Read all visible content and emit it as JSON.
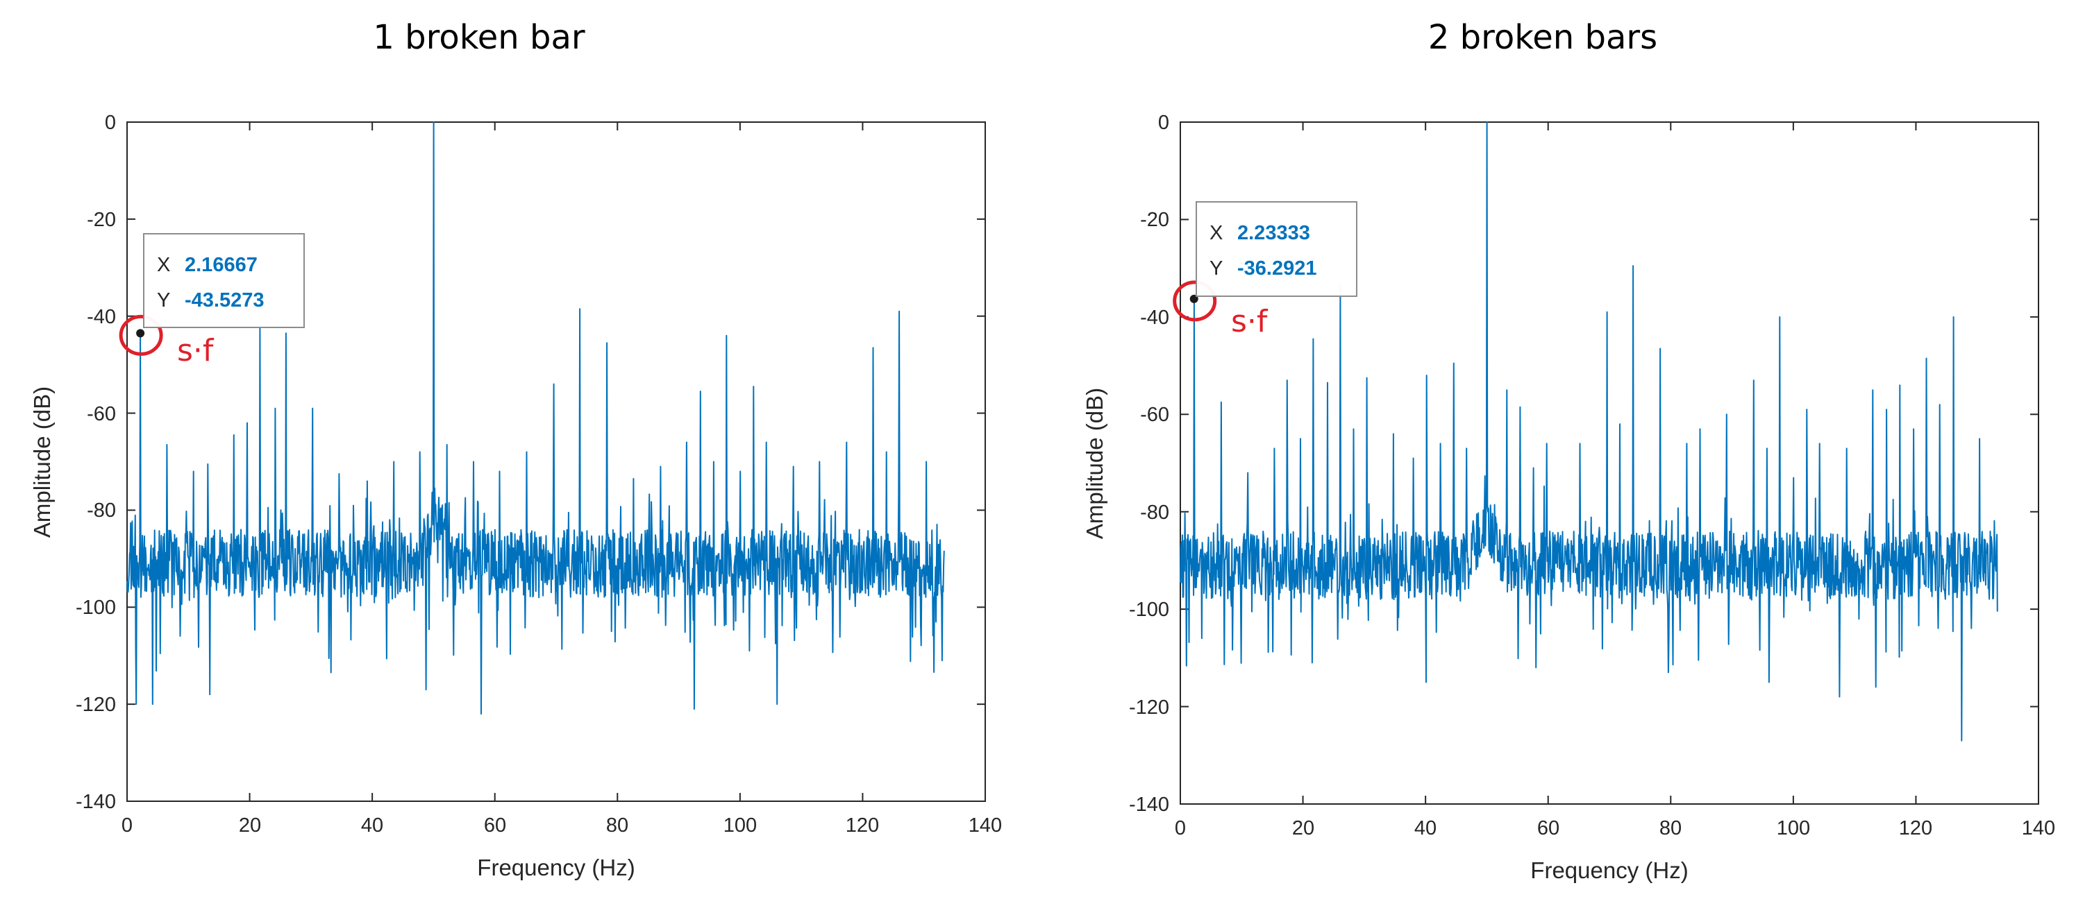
{
  "colors": {
    "series": "#0072bd",
    "marker_ring": "#e0202a",
    "axis": "#262626",
    "tip_value": "#0072bd"
  },
  "chart_data": [
    {
      "type": "line",
      "title": "1 broken bar",
      "xlabel": "Frequency (Hz)",
      "ylabel": "Amplitude (dB)",
      "xlim": [
        0,
        140
      ],
      "ylim": [
        -140,
        0
      ],
      "xticks": [
        "0",
        "20",
        "40",
        "60",
        "80",
        "100",
        "120",
        "140"
      ],
      "yticks": [
        "0",
        "-20",
        "-40",
        "-60",
        "-80",
        "-100",
        "-120",
        "-140"
      ],
      "x_data_range": [
        0,
        133.3
      ],
      "noise_floor": -91,
      "noise_spread": 7,
      "peaks": [
        {
          "x": 2.17,
          "y": -43.5
        },
        {
          "x": 6.5,
          "y": -66.5
        },
        {
          "x": 10.8,
          "y": -72
        },
        {
          "x": 13.2,
          "y": -70.5
        },
        {
          "x": 17.4,
          "y": -64.5
        },
        {
          "x": 19.6,
          "y": -62
        },
        {
          "x": 21.7,
          "y": -42.5
        },
        {
          "x": 24.2,
          "y": -59
        },
        {
          "x": 25.9,
          "y": -43.5
        },
        {
          "x": 30.3,
          "y": -59
        },
        {
          "x": 34.6,
          "y": -72.5
        },
        {
          "x": 39.2,
          "y": -74
        },
        {
          "x": 43.5,
          "y": -70
        },
        {
          "x": 47.8,
          "y": -68
        },
        {
          "x": 50,
          "y": 0
        },
        {
          "x": 52.2,
          "y": -66.5
        },
        {
          "x": 56.5,
          "y": -70
        },
        {
          "x": 60.8,
          "y": -72
        },
        {
          "x": 65.2,
          "y": -68
        },
        {
          "x": 69.6,
          "y": -54
        },
        {
          "x": 73.9,
          "y": -38.5
        },
        {
          "x": 78.3,
          "y": -45.5
        },
        {
          "x": 82.6,
          "y": -73.5
        },
        {
          "x": 87,
          "y": -71
        },
        {
          "x": 91.3,
          "y": -66
        },
        {
          "x": 93.5,
          "y": -55.5
        },
        {
          "x": 95.7,
          "y": -70
        },
        {
          "x": 97.8,
          "y": -44
        },
        {
          "x": 100,
          "y": -72
        },
        {
          "x": 102.2,
          "y": -54.5
        },
        {
          "x": 104.3,
          "y": -66
        },
        {
          "x": 108.7,
          "y": -71
        },
        {
          "x": 113,
          "y": -70
        },
        {
          "x": 117.4,
          "y": -66
        },
        {
          "x": 121.7,
          "y": -46.5
        },
        {
          "x": 123.9,
          "y": -68
        },
        {
          "x": 126,
          "y": -39
        },
        {
          "x": 130.4,
          "y": -70
        }
      ],
      "dips": [
        {
          "x": 1.5,
          "y": -120
        },
        {
          "x": 4.2,
          "y": -120
        },
        {
          "x": 13.5,
          "y": -118
        },
        {
          "x": 48.8,
          "y": -117
        },
        {
          "x": 57.8,
          "y": -122
        },
        {
          "x": 92.5,
          "y": -121
        },
        {
          "x": 106,
          "y": -120
        },
        {
          "x": 133,
          "y": -111
        }
      ],
      "seed": 11,
      "datatip": {
        "x_key": "X",
        "x_value": "2.16667",
        "y_key": "Y",
        "y_value": "-43.5273",
        "point_x": 2.16667,
        "point_y": -43.5273
      },
      "annotation": "s·f"
    },
    {
      "type": "line",
      "title": "2 broken bars",
      "xlabel": "Frequency (Hz)",
      "ylabel": "Amplitude (dB)",
      "xlim": [
        0,
        140
      ],
      "ylim": [
        -140,
        0
      ],
      "xticks": [
        "0",
        "20",
        "40",
        "60",
        "80",
        "100",
        "120",
        "140"
      ],
      "yticks": [
        "0",
        "-20",
        "-40",
        "-60",
        "-80",
        "-100",
        "-120",
        "-140"
      ],
      "x_data_range": [
        0,
        133.3
      ],
      "noise_floor": -91,
      "noise_spread": 7,
      "peaks": [
        {
          "x": 2.23,
          "y": -36.3
        },
        {
          "x": 6.7,
          "y": -57.5
        },
        {
          "x": 11,
          "y": -72
        },
        {
          "x": 15.3,
          "y": -67
        },
        {
          "x": 17.4,
          "y": -53
        },
        {
          "x": 19.6,
          "y": -65
        },
        {
          "x": 21.7,
          "y": -44.5
        },
        {
          "x": 24,
          "y": -53.5
        },
        {
          "x": 26.1,
          "y": -33.5
        },
        {
          "x": 28.3,
          "y": -63
        },
        {
          "x": 30.4,
          "y": -52.5
        },
        {
          "x": 34.8,
          "y": -64
        },
        {
          "x": 38,
          "y": -69
        },
        {
          "x": 40.2,
          "y": -52
        },
        {
          "x": 42.4,
          "y": -66
        },
        {
          "x": 44.6,
          "y": -49.5
        },
        {
          "x": 46.7,
          "y": -67
        },
        {
          "x": 50,
          "y": 0
        },
        {
          "x": 53.3,
          "y": -55
        },
        {
          "x": 55.4,
          "y": -58.5
        },
        {
          "x": 57.6,
          "y": -71
        },
        {
          "x": 59.8,
          "y": -66
        },
        {
          "x": 65.2,
          "y": -66
        },
        {
          "x": 69.6,
          "y": -39
        },
        {
          "x": 71.7,
          "y": -62
        },
        {
          "x": 73.9,
          "y": -29.5
        },
        {
          "x": 78.3,
          "y": -46.5
        },
        {
          "x": 82.6,
          "y": -66
        },
        {
          "x": 84.8,
          "y": -63
        },
        {
          "x": 89.1,
          "y": -60
        },
        {
          "x": 93.5,
          "y": -53
        },
        {
          "x": 95.7,
          "y": -67
        },
        {
          "x": 97.8,
          "y": -40
        },
        {
          "x": 100,
          "y": -73
        },
        {
          "x": 102.2,
          "y": -59
        },
        {
          "x": 104.3,
          "y": -66
        },
        {
          "x": 108.7,
          "y": -67
        },
        {
          "x": 113,
          "y": -55
        },
        {
          "x": 115.2,
          "y": -59
        },
        {
          "x": 117.4,
          "y": -54
        },
        {
          "x": 119.6,
          "y": -63
        },
        {
          "x": 121.7,
          "y": -48.5
        },
        {
          "x": 123.9,
          "y": -58
        },
        {
          "x": 126.1,
          "y": -40
        },
        {
          "x": 130.4,
          "y": -65
        }
      ],
      "dips": [
        {
          "x": 3.5,
          "y": -106
        },
        {
          "x": 21.5,
          "y": -111
        },
        {
          "x": 40.1,
          "y": -115
        },
        {
          "x": 58,
          "y": -112
        },
        {
          "x": 79.6,
          "y": -113
        },
        {
          "x": 96,
          "y": -115
        },
        {
          "x": 107.5,
          "y": -118
        },
        {
          "x": 113.5,
          "y": -116
        },
        {
          "x": 127.5,
          "y": -127
        }
      ],
      "seed": 29,
      "datatip": {
        "x_key": "X",
        "x_value": "2.23333",
        "y_key": "Y",
        "y_value": "-36.2921",
        "point_x": 2.23333,
        "point_y": -36.2921
      },
      "annotation": "s·f"
    }
  ]
}
